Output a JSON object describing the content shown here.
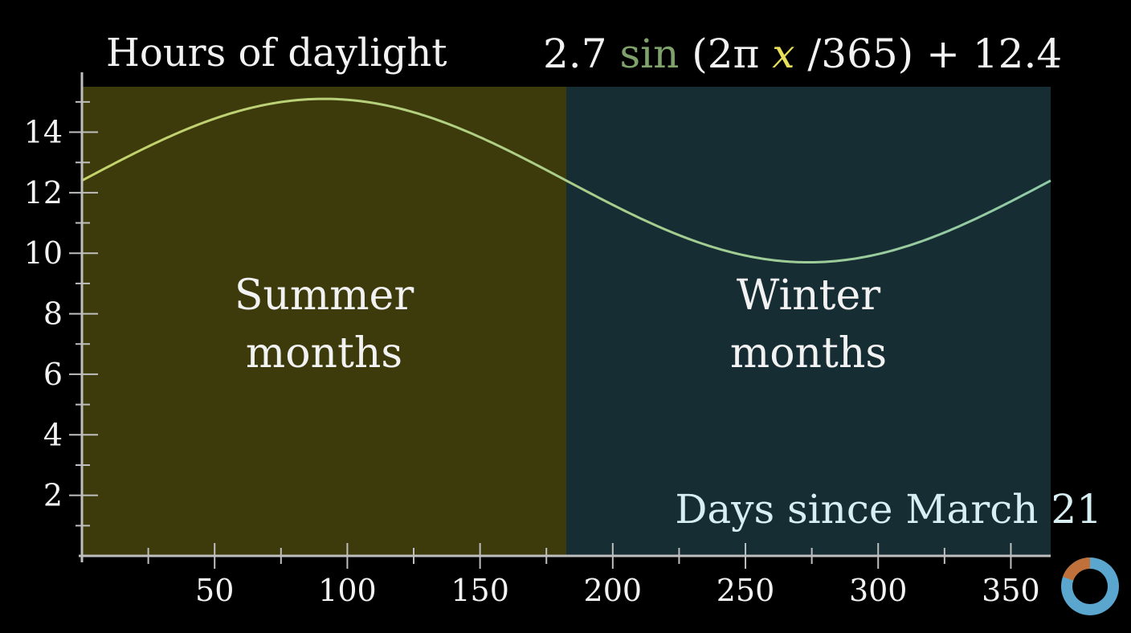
{
  "chart_data": {
    "type": "line",
    "title": "Hours of daylight",
    "formula": {
      "coef": "2.7",
      "fn": "sin",
      "open": "(2π",
      "var": "x",
      "rest": "/365) + 12.4"
    },
    "xlabel": "Days since March 21",
    "ylabel": "",
    "xlim": [
      0,
      365
    ],
    "ylim": [
      0,
      15.5
    ],
    "x_ticks": [
      50,
      100,
      150,
      200,
      250,
      300,
      350
    ],
    "y_ticks": [
      2,
      4,
      6,
      8,
      10,
      12,
      14
    ],
    "regions": [
      {
        "from": 0,
        "to": 182.5,
        "label_line1": "Summer",
        "label_line2": "months",
        "color": "#3d3a0b"
      },
      {
        "from": 182.5,
        "to": 365,
        "label_line1": "Winter",
        "label_line2": "months",
        "color": "#172d34"
      }
    ],
    "series": [
      {
        "amplitude": 2.7,
        "period": 365,
        "offset": 12.4,
        "color_start": "#c6d36a",
        "color_end": "#8fcaa8"
      }
    ],
    "grid": false,
    "colors": {
      "axis": "#bfbfbf",
      "text": "#f2f2f2",
      "sin": "#7fa26a",
      "var": "#e8e05a"
    }
  }
}
